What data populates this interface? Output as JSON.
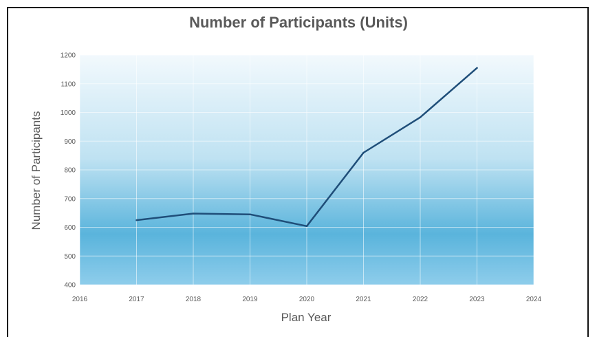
{
  "chart_data": {
    "type": "line",
    "title": "Number of Participants (Units)",
    "xlabel": "Plan Year",
    "ylabel": "Number of Participants",
    "xlim": [
      2016,
      2024
    ],
    "ylim": [
      400,
      1200
    ],
    "x_ticks": [
      2016,
      2017,
      2018,
      2019,
      2020,
      2021,
      2022,
      2023,
      2024
    ],
    "y_ticks": [
      400,
      500,
      600,
      700,
      800,
      900,
      1000,
      1100,
      1200
    ],
    "grid": true,
    "legend": "none",
    "series": [
      {
        "x": [
          2017,
          2018,
          2019,
          2020,
          2021,
          2022,
          2023
        ],
        "values": [
          625,
          648,
          645,
          604,
          860,
          983,
          1155
        ],
        "color": "#1f4e79"
      }
    ],
    "colors": {
      "plot_top": "#f2f9fd",
      "plot_mid": "#5ab4dc",
      "plot_bottom": "#8ecdeb",
      "line": "#1f4e79",
      "text": "#595959"
    }
  }
}
